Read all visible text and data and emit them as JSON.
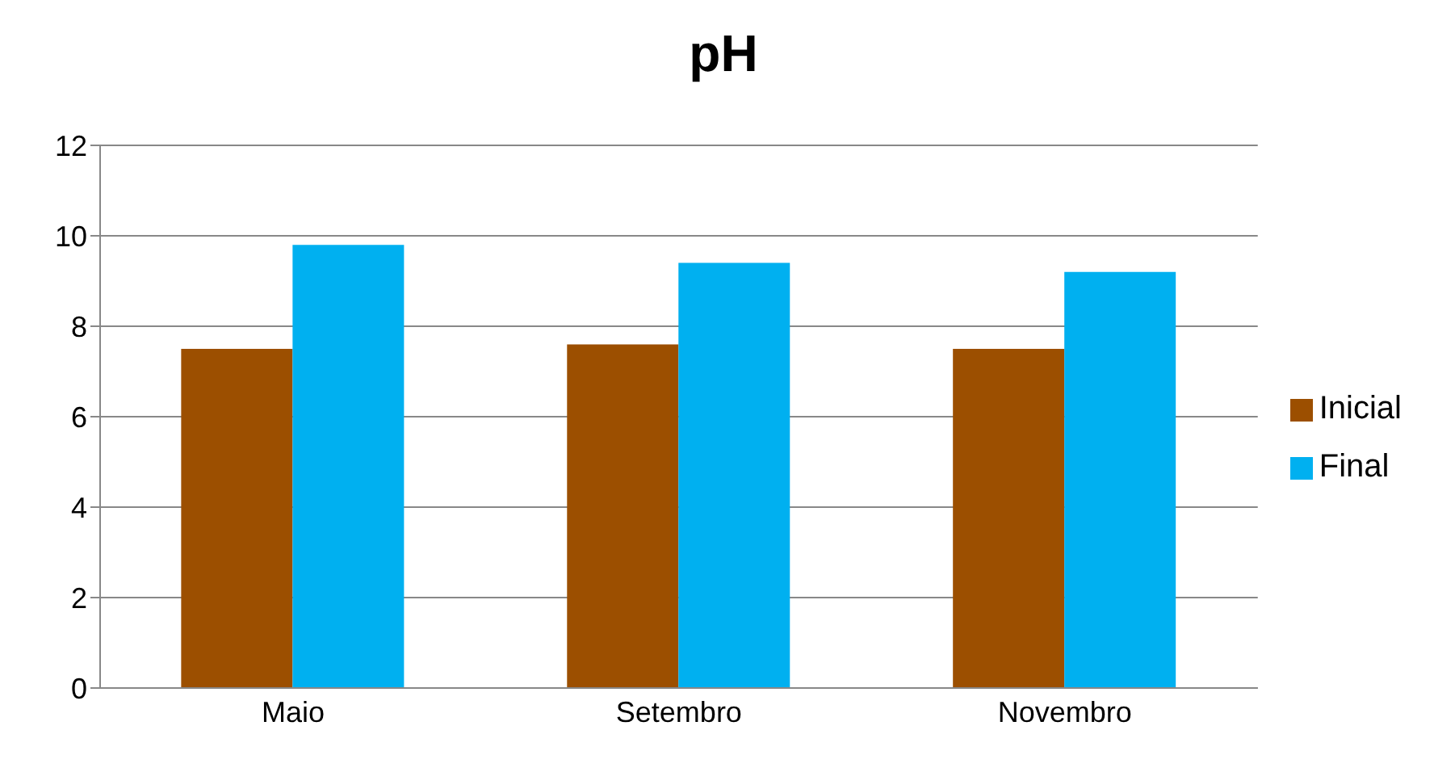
{
  "chart_data": {
    "type": "bar",
    "title": "pH",
    "categories": [
      "Maio",
      "Setembro",
      "Novembro"
    ],
    "series": [
      {
        "name": "Inicial",
        "color": "#9c4f00",
        "values": [
          7.5,
          7.6,
          7.5
        ]
      },
      {
        "name": "Final",
        "color": "#00b0f0",
        "values": [
          9.8,
          9.4,
          9.2
        ]
      }
    ],
    "ylim": [
      0,
      12
    ],
    "yticks": [
      0,
      2,
      4,
      6,
      8,
      10,
      12
    ],
    "grid": "y",
    "legend": "right"
  }
}
